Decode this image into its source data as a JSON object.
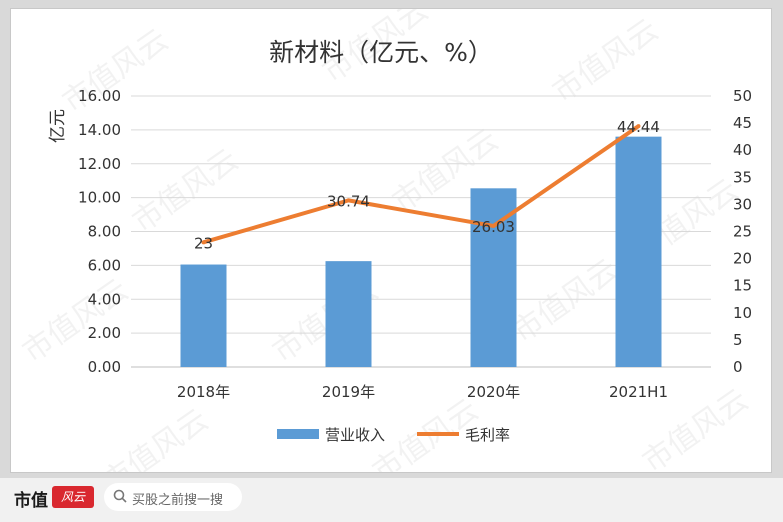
{
  "chart_data": {
    "type": "bar",
    "title": "新材料（亿元、%）",
    "ylabel": "亿元",
    "categories": [
      "2018年",
      "2019年",
      "2020年",
      "2021H1"
    ],
    "ylim": [
      0,
      16
    ],
    "y_ticks": [
      "16.00",
      "14.00",
      "12.00",
      "10.00",
      "8.00",
      "6.00",
      "4.00",
      "2.00",
      "0.00"
    ],
    "y2lim": [
      0,
      50
    ],
    "y2_ticks": [
      "50",
      "45",
      "40",
      "35",
      "30",
      "25",
      "20",
      "15",
      "10",
      "5",
      "0"
    ],
    "series": [
      {
        "name": "营业收入",
        "type": "bar",
        "axis": "left",
        "values": [
          6.05,
          6.25,
          10.55,
          13.6
        ],
        "color": "#5b9bd5"
      },
      {
        "name": "毛利率",
        "type": "line",
        "axis": "right",
        "values": [
          23,
          30.74,
          26.03,
          44.44
        ],
        "labels": [
          "23",
          "30.74",
          "26.03",
          "44.44"
        ],
        "color": "#ed7d31"
      }
    ],
    "grid": true,
    "legend": "bottom"
  },
  "watermark": "市值风云",
  "footer": {
    "brand": "市值",
    "brand_mark": "风云",
    "search_placeholder": "买股之前搜一搜"
  }
}
